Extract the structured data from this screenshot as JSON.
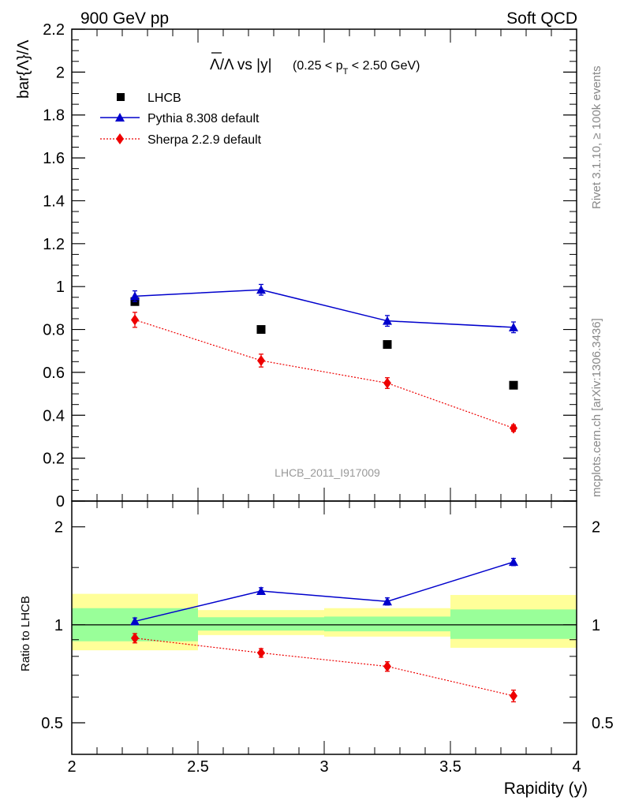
{
  "header": {
    "left": "900 GeV pp",
    "right": "Soft QCD",
    "side_top": "Rivet 3.1.10, ≥ 100k events",
    "side_bottom": "mcplots.cern.ch [arXiv:1306.3436]"
  },
  "colors": {
    "data": "#000000",
    "pythia": "#0000cc",
    "sherpa": "#ee0000",
    "band_outer": "#ffff99",
    "band_inner": "#99ff99"
  },
  "chart_data": [
    {
      "type": "scatter",
      "panel": "main",
      "title": "Λ̄/Λ vs |y|(0.25 < pT < 2.50 GeV)",
      "title_parts": {
        "ratio": "Λ/Λ vs |y|",
        "cut_open": "(0.25 < p",
        "cut_sub": "T",
        "cut_close": " < 2.50 GeV)"
      },
      "ylabel": "bar{Λ}/Λ",
      "xlim": [
        2.0,
        4.0
      ],
      "ylim": [
        0.0,
        2.2
      ],
      "yticks": [
        0,
        0.2,
        0.4,
        0.6,
        0.8,
        1,
        1.2,
        1.4,
        1.6,
        1.8,
        2,
        2.2
      ],
      "ytick_labels": [
        "0",
        "0.2",
        "0.4",
        "0.6",
        "0.8",
        "1",
        "1.2",
        "1.4",
        "1.6",
        "1.8",
        "2",
        "2.2"
      ],
      "watermark": "LHCB_2011_I917009",
      "legend_position": "top-left",
      "series": [
        {
          "name": "LHCB",
          "style": "square-markers",
          "x": [
            2.25,
            2.75,
            3.25,
            3.75
          ],
          "y": [
            0.93,
            0.8,
            0.73,
            0.54
          ],
          "err": [
            0.015,
            0.01,
            0.01,
            0.01
          ]
        },
        {
          "name": "Pythia 8.308 default",
          "style": "blue-line-triangles",
          "x": [
            2.25,
            2.75,
            3.25,
            3.75
          ],
          "y": [
            0.955,
            0.985,
            0.84,
            0.81
          ],
          "err": [
            0.025,
            0.025,
            0.025,
            0.025
          ]
        },
        {
          "name": "Sherpa 2.2.9 default",
          "style": "red-dotted-diamonds",
          "x": [
            2.25,
            2.75,
            3.25,
            3.75
          ],
          "y": [
            0.845,
            0.655,
            0.55,
            0.34
          ],
          "err": [
            0.035,
            0.03,
            0.025,
            0.015
          ]
        }
      ]
    },
    {
      "type": "line",
      "panel": "ratio",
      "ylabel": "Ratio to LHCB",
      "xlabel": "Rapidity (y)",
      "xlim": [
        2.0,
        4.0
      ],
      "ylim": [
        0.4,
        2.4
      ],
      "yscale": "log",
      "xticks": [
        2,
        2.5,
        3,
        3.5,
        4
      ],
      "xtick_labels": [
        "2",
        "2.5",
        "3",
        "3.5",
        "4"
      ],
      "yticks": [
        0.5,
        1,
        2
      ],
      "ytick_labels": [
        "0.5",
        "1",
        "2"
      ],
      "bands": [
        {
          "x0": 2.0,
          "x1": 2.5,
          "outer": [
            0.835,
            1.245
          ],
          "inner": [
            0.89,
            1.125
          ]
        },
        {
          "x0": 2.5,
          "x1": 3.0,
          "outer": [
            0.93,
            1.11
          ],
          "inner": [
            0.96,
            1.055
          ]
        },
        {
          "x0": 3.0,
          "x1": 3.5,
          "outer": [
            0.92,
            1.125
          ],
          "inner": [
            0.955,
            1.06
          ]
        },
        {
          "x0": 3.5,
          "x1": 4.0,
          "outer": [
            0.85,
            1.235
          ],
          "inner": [
            0.905,
            1.115
          ]
        }
      ],
      "series": [
        {
          "name": "Pythia 8.308 default",
          "x": [
            2.25,
            2.75,
            3.25,
            3.75
          ],
          "y": [
            1.025,
            1.27,
            1.18,
            1.56
          ],
          "err": [
            0.025,
            0.03,
            0.03,
            0.04
          ]
        },
        {
          "name": "Sherpa 2.2.9 default",
          "x": [
            2.25,
            2.75,
            3.25,
            3.75
          ],
          "y": [
            0.91,
            0.82,
            0.745,
            0.605
          ],
          "err": [
            0.03,
            0.025,
            0.025,
            0.025
          ]
        }
      ]
    }
  ]
}
